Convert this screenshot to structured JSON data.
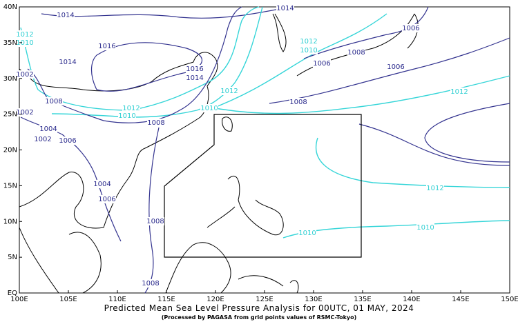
{
  "map": {
    "lon_labels": [
      "100E",
      "105E",
      "110E",
      "115E",
      "120E",
      "125E",
      "130E",
      "135E",
      "140E",
      "145E",
      "150E"
    ],
    "lat_labels": [
      "EQ",
      "5N",
      "10N",
      "15N",
      "20N",
      "25N",
      "30N",
      "35N",
      "40N"
    ],
    "isobar_labels": [
      "1014",
      "1016",
      "1014",
      "1012",
      "1010",
      "1002",
      "1008",
      "1002",
      "1004",
      "1002",
      "1006",
      "1012",
      "1010",
      "1008",
      "1016",
      "1014",
      "1012",
      "1010",
      "1008",
      "1004",
      "1006",
      "1008",
      "1008",
      "1014",
      "1012",
      "1010",
      "1008",
      "1006",
      "1006",
      "1006",
      "1012",
      "1012",
      "1010",
      "1010"
    ],
    "title": "Predicted Mean Sea Level Pressure Analysis for 00UTC, 01 MAY, 2024",
    "subtitle": "(Processed by PAGASA from grid points values of RSMC-Tokyo)"
  }
}
